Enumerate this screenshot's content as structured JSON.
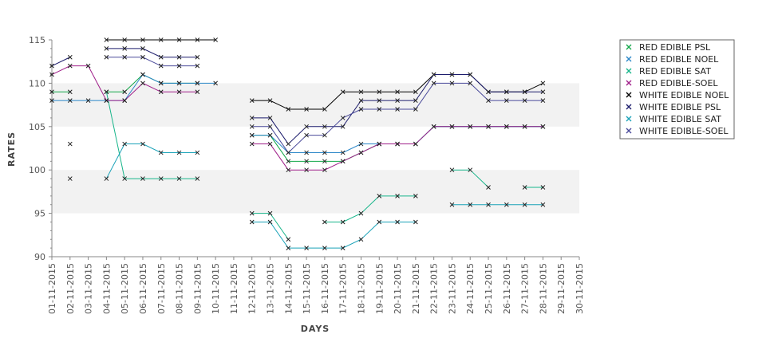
{
  "chart_data": {
    "type": "line",
    "title": "",
    "xlabel": "DAYS",
    "ylabel": "RATES",
    "ylim": [
      90,
      115
    ],
    "yticks": [
      90,
      95,
      100,
      105,
      110,
      115
    ],
    "grid": "alternating horizontal bands",
    "legend_position": "right",
    "categories": [
      "01-11-2015",
      "02-11-2015",
      "03-11-2015",
      "04-11-2015",
      "05-11-2015",
      "06-11-2015",
      "07-11-2015",
      "08-11-2015",
      "09-11-2015",
      "10-11-2015",
      "11-11-2015",
      "12-11-2015",
      "13-11-2015",
      "14-11-2015",
      "15-11-2015",
      "16-11-2015",
      "17-11-2015",
      "18-11-2015",
      "19-11-2015",
      "20-11-2015",
      "21-11-2015",
      "22-11-2015",
      "23-11-2015",
      "24-11-2015",
      "25-11-2015",
      "26-11-2015",
      "27-11-2015",
      "28-11-2015",
      "29-11-2015",
      "30-11-2015"
    ],
    "series": [
      {
        "name": "RED EDIBLE  PSL",
        "color": "#14a84a",
        "values": [
          109,
          109,
          null,
          109,
          109,
          111,
          110,
          110,
          110,
          null,
          null,
          104,
          104,
          101,
          101,
          101,
          101,
          102,
          103,
          103,
          103,
          105,
          105,
          105,
          105,
          105,
          105,
          105,
          null,
          null
        ]
      },
      {
        "name": "RED EDIBLE NOEL",
        "color": "#2a86c8",
        "values": [
          108,
          108,
          108,
          108,
          108,
          111,
          110,
          110,
          110,
          110,
          null,
          104,
          104,
          102,
          102,
          102,
          102,
          103,
          103,
          103,
          103,
          105,
          105,
          105,
          105,
          105,
          105,
          105,
          null,
          null
        ]
      },
      {
        "name": "RED EDIBLE SAT",
        "color": "#17b58a",
        "values": [
          null,
          103,
          null,
          109,
          99,
          99,
          99,
          99,
          99,
          null,
          null,
          95,
          95,
          92,
          null,
          94,
          94,
          95,
          97,
          97,
          97,
          null,
          100,
          100,
          98,
          null,
          98,
          98,
          null,
          null
        ]
      },
      {
        "name": "RED EDIBLE-SOEL",
        "color": "#a0208a",
        "values": [
          111,
          112,
          112,
          108,
          108,
          110,
          109,
          109,
          109,
          null,
          null,
          103,
          103,
          100,
          100,
          100,
          101,
          102,
          103,
          103,
          103,
          105,
          105,
          105,
          105,
          105,
          105,
          105,
          null,
          null
        ]
      },
      {
        "name": "WHITE EDIBLE NOEL",
        "color": "#000000",
        "values": [
          null,
          null,
          null,
          115,
          115,
          115,
          115,
          115,
          115,
          115,
          null,
          108,
          108,
          107,
          107,
          107,
          109,
          109,
          109,
          109,
          109,
          111,
          111,
          111,
          109,
          109,
          109,
          110,
          null,
          null
        ]
      },
      {
        "name": "WHITE EDIBLE PSL",
        "color": "#1c1c6c",
        "values": [
          112,
          113,
          null,
          114,
          114,
          114,
          113,
          113,
          113,
          null,
          null,
          106,
          106,
          103,
          105,
          105,
          105,
          108,
          108,
          108,
          108,
          111,
          111,
          111,
          109,
          109,
          109,
          109,
          null,
          null
        ]
      },
      {
        "name": "WHITE EDIBLE SAT",
        "color": "#1aa2b8",
        "values": [
          null,
          99,
          null,
          99,
          103,
          103,
          102,
          102,
          102,
          null,
          null,
          94,
          94,
          91,
          91,
          91,
          91,
          92,
          94,
          94,
          94,
          null,
          96,
          96,
          96,
          96,
          96,
          96,
          null,
          null
        ]
      },
      {
        "name": "WHITE EDIBLE-SOEL",
        "color": "#4a4a9a",
        "values": [
          null,
          null,
          null,
          113,
          113,
          113,
          112,
          112,
          112,
          null,
          null,
          105,
          105,
          102,
          104,
          104,
          106,
          107,
          107,
          107,
          107,
          110,
          110,
          110,
          108,
          108,
          108,
          108,
          null,
          null
        ]
      }
    ]
  }
}
